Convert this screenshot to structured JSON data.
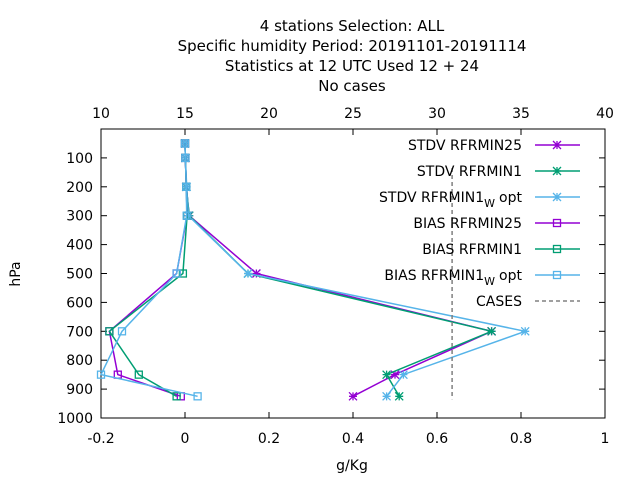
{
  "chart_data": {
    "type": "line",
    "title_lines": [
      "4 stations Selection: ALL",
      "Specific humidity  Period: 20191101-20191114",
      "Statistics at 12 UTC  Used  12 + 24",
      "No cases"
    ],
    "xlabel": "g/Kg",
    "ylabel": "hPa",
    "xlim": [
      -0.2,
      1.0
    ],
    "ylim": [
      1000,
      0
    ],
    "x_ticks": [
      "-0.2",
      "0",
      "0.2",
      "0.4",
      "0.6",
      "0.8",
      "1"
    ],
    "y_ticks": [
      "100",
      "200",
      "300",
      "400",
      "500",
      "600",
      "700",
      "800",
      "900",
      "1000"
    ],
    "x2lim": [
      10,
      40
    ],
    "x2_ticks": [
      "10",
      "15",
      "20",
      "25",
      "30",
      "35",
      "40"
    ],
    "legend_position": "top-right",
    "grid": false,
    "series": [
      {
        "name": "STDV RFRMIN25",
        "color": "#9400d3",
        "marker": "star",
        "x": [
          0.0,
          0.001,
          0.003,
          0.01,
          0.17,
          0.73,
          0.5,
          0.4
        ],
        "y": [
          50,
          100,
          200,
          300,
          500,
          700,
          850,
          925
        ]
      },
      {
        "name": "STDV RFRMIN1",
        "color": "#009e73",
        "marker": "star",
        "x": [
          0.0,
          0.001,
          0.003,
          0.01,
          0.15,
          0.73,
          0.48,
          0.51
        ],
        "y": [
          50,
          100,
          200,
          300,
          500,
          700,
          850,
          925
        ]
      },
      {
        "name_prefix": "STDV RFRMIN1",
        "name_sub": "W",
        "name_suffix": "opt",
        "color": "#56b4e9",
        "marker": "star",
        "x": [
          0.0,
          0.001,
          0.004,
          0.008,
          0.15,
          0.81,
          0.52,
          0.48
        ],
        "y": [
          50,
          100,
          200,
          300,
          500,
          700,
          850,
          925
        ]
      },
      {
        "name": "BIAS RFRMIN25",
        "color": "#9400d3",
        "marker": "square",
        "x": [
          0.0,
          0.001,
          0.003,
          0.005,
          -0.02,
          -0.18,
          -0.16,
          -0.01
        ],
        "y": [
          50,
          100,
          200,
          300,
          500,
          700,
          850,
          925
        ]
      },
      {
        "name": "BIAS RFRMIN1",
        "color": "#009e73",
        "marker": "square",
        "x": [
          0.0,
          0.001,
          0.003,
          0.005,
          -0.005,
          -0.18,
          -0.11,
          -0.02
        ],
        "y": [
          50,
          100,
          200,
          300,
          500,
          700,
          850,
          925
        ]
      },
      {
        "name_prefix": "BIAS RFRMIN1",
        "name_sub": "W",
        "name_suffix": "opt",
        "color": "#56b4e9",
        "marker": "square",
        "x": [
          0.0,
          0.001,
          0.003,
          0.004,
          -0.02,
          -0.15,
          -0.2,
          0.03
        ],
        "y": [
          50,
          100,
          200,
          300,
          500,
          700,
          850,
          925
        ]
      },
      {
        "name": "CASES",
        "color": "#808080",
        "dashed": true,
        "x2": [
          30.9,
          30.9
        ],
        "y": [
          135,
          935
        ]
      }
    ]
  }
}
